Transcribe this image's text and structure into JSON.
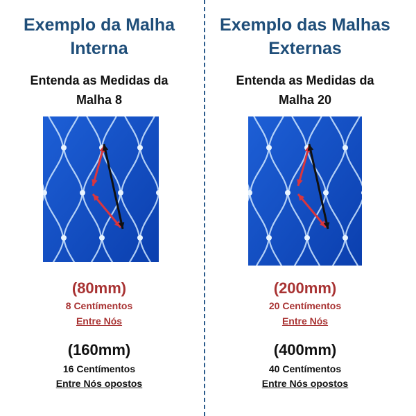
{
  "columns": [
    {
      "title": [
        "Exemplo da Malha",
        "Interna"
      ],
      "subtitle": [
        "Entenda as Medidas da",
        "Malha 8"
      ],
      "inner": {
        "measure": "(80mm)",
        "text": "8 Centímentos",
        "note": "Entre Nós"
      },
      "outer": {
        "measure": "(160mm)",
        "text": "16 Centímentos",
        "note": "Entre Nós opostos"
      }
    },
    {
      "title": [
        "Exemplo das Malhas",
        "Externas"
      ],
      "subtitle": [
        "Entenda as Medidas da",
        "Malha 20"
      ],
      "inner": {
        "measure": "(200mm)",
        "text": "20 Centímentos",
        "note": "Entre Nós"
      },
      "outer": {
        "measure": "(400mm)",
        "text": "40 Centímentos",
        "note": "Entre Nós opostos"
      }
    }
  ]
}
